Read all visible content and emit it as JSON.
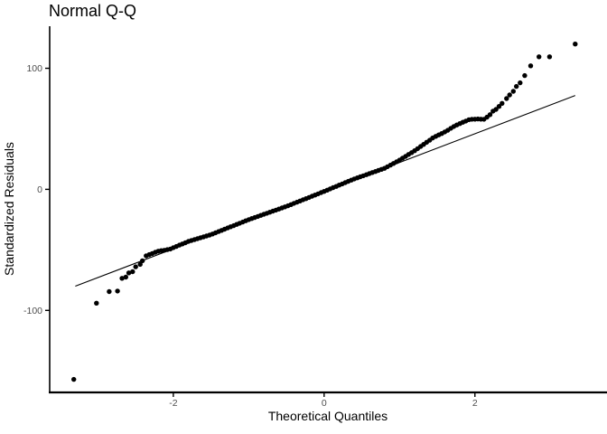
{
  "chart_data": {
    "type": "scatter",
    "title": "Normal Q-Q",
    "xlabel": "Theoretical Quantiles",
    "ylabel": "Standardized Residuals",
    "x_ticks": [
      -2,
      0,
      2
    ],
    "y_ticks": [
      -100,
      0,
      100
    ],
    "xlim": [
      -3.64,
      3.74
    ],
    "ylim": [
      -167,
      134
    ],
    "grid": "off",
    "legend": "none",
    "background_color": "#ffffff",
    "point_color": "#000000",
    "axis_line_color": "#000000",
    "tick_text_color": "#4d4d4d",
    "reference_line": {
      "x1": -3.3,
      "y1": -80,
      "x2": 3.33,
      "y2": 77.5
    },
    "points": [
      [
        -3.32,
        -157
      ],
      [
        -3.02,
        -94
      ],
      [
        -2.85,
        -84.5
      ],
      [
        -2.74,
        -84
      ],
      [
        -2.68,
        -73.5
      ],
      [
        -2.63,
        -72.5
      ],
      [
        -2.59,
        -69
      ],
      [
        -2.54,
        -68
      ],
      [
        -2.5,
        -64
      ],
      [
        -2.44,
        -62
      ],
      [
        -2.41,
        -59
      ],
      [
        -2.36,
        -54.9
      ],
      [
        -2.32,
        -53.9
      ],
      [
        -2.28,
        -53
      ],
      [
        -2.24,
        -52
      ],
      [
        -2.2,
        -51.1
      ],
      [
        -2.16,
        -50.6
      ],
      [
        -2.12,
        -50.3
      ],
      [
        -2.08,
        -49.8
      ],
      [
        -2.04,
        -49.3
      ],
      [
        -2,
        -48.2
      ],
      [
        -1.96,
        -47.2
      ],
      [
        -1.92,
        -46.1
      ],
      [
        -1.88,
        -45.1
      ],
      [
        -1.84,
        -44.1
      ],
      [
        -1.8,
        -43
      ],
      [
        -1.76,
        -42.3
      ],
      [
        -1.72,
        -41.5
      ],
      [
        -1.68,
        -40.8
      ],
      [
        -1.64,
        -40
      ],
      [
        -1.6,
        -39.3
      ],
      [
        -1.56,
        -38.5
      ],
      [
        -1.52,
        -37.8
      ],
      [
        -1.48,
        -36.9
      ],
      [
        -1.44,
        -35.9
      ],
      [
        -1.4,
        -34.9
      ],
      [
        -1.36,
        -33.9
      ],
      [
        -1.32,
        -32.9
      ],
      [
        -1.28,
        -31.9
      ],
      [
        -1.24,
        -30.9
      ],
      [
        -1.2,
        -30
      ],
      [
        -1.16,
        -29
      ],
      [
        -1.12,
        -28
      ],
      [
        -1.08,
        -27
      ],
      [
        -1.04,
        -26
      ],
      [
        -1,
        -25
      ],
      [
        -0.96,
        -24.1
      ],
      [
        -0.92,
        -23.3
      ],
      [
        -0.88,
        -22.4
      ],
      [
        -0.84,
        -21.5
      ],
      [
        -0.8,
        -20.6
      ],
      [
        -0.76,
        -19.8
      ],
      [
        -0.72,
        -18.9
      ],
      [
        -0.68,
        -18
      ],
      [
        -0.64,
        -17.2
      ],
      [
        -0.6,
        -16.3
      ],
      [
        -0.56,
        -15.4
      ],
      [
        -0.52,
        -14.5
      ],
      [
        -0.48,
        -13.6
      ],
      [
        -0.44,
        -12.6
      ],
      [
        -0.4,
        -11.6
      ],
      [
        -0.36,
        -10.6
      ],
      [
        -0.32,
        -9.6
      ],
      [
        -0.28,
        -8.6
      ],
      [
        -0.24,
        -7.7
      ],
      [
        -0.2,
        -6.7
      ],
      [
        -0.16,
        -5.7
      ],
      [
        -0.12,
        -4.7
      ],
      [
        -0.08,
        -3.7
      ],
      [
        -0.04,
        -2.7
      ],
      [
        0,
        -1.7
      ],
      [
        0.04,
        -0.7
      ],
      [
        0.08,
        0.4
      ],
      [
        0.12,
        1.4
      ],
      [
        0.16,
        2.4
      ],
      [
        0.2,
        3.5
      ],
      [
        0.24,
        4.5
      ],
      [
        0.28,
        5.5
      ],
      [
        0.32,
        6.6
      ],
      [
        0.36,
        7.6
      ],
      [
        0.4,
        8.6
      ],
      [
        0.44,
        9.5
      ],
      [
        0.48,
        10.4
      ],
      [
        0.52,
        11.2
      ],
      [
        0.56,
        12.1
      ],
      [
        0.6,
        13
      ],
      [
        0.64,
        13.9
      ],
      [
        0.68,
        14.7
      ],
      [
        0.72,
        15.6
      ],
      [
        0.76,
        16.5
      ],
      [
        0.8,
        17.3
      ],
      [
        0.84,
        18.7
      ],
      [
        0.88,
        20
      ],
      [
        0.92,
        21.4
      ],
      [
        0.96,
        22.8
      ],
      [
        1,
        24.1
      ],
      [
        1.04,
        25.7
      ],
      [
        1.08,
        27.2
      ],
      [
        1.12,
        28.8
      ],
      [
        1.16,
        30.3
      ],
      [
        1.2,
        31.9
      ],
      [
        1.24,
        33.6
      ],
      [
        1.28,
        35.4
      ],
      [
        1.32,
        37.1
      ],
      [
        1.36,
        38.9
      ],
      [
        1.4,
        40.6
      ],
      [
        1.44,
        42.4
      ],
      [
        1.48,
        43.8
      ],
      [
        1.52,
        45
      ],
      [
        1.56,
        46.1
      ],
      [
        1.6,
        47.4
      ],
      [
        1.64,
        48.8
      ],
      [
        1.68,
        50.4
      ],
      [
        1.72,
        51.9
      ],
      [
        1.76,
        53.2
      ],
      [
        1.8,
        54.3
      ],
      [
        1.84,
        55.4
      ],
      [
        1.88,
        56.4
      ],
      [
        1.92,
        57.5
      ],
      [
        1.96,
        57.9
      ],
      [
        2,
        58
      ],
      [
        2.04,
        58.1
      ],
      [
        2.08,
        58
      ],
      [
        2.12,
        57.9
      ],
      [
        2.16,
        59.6
      ],
      [
        2.2,
        61.7
      ],
      [
        2.24,
        64.6
      ],
      [
        2.28,
        66
      ],
      [
        2.32,
        68.5
      ],
      [
        2.36,
        71
      ],
      [
        2.42,
        75
      ],
      [
        2.46,
        78
      ],
      [
        2.51,
        81
      ],
      [
        2.55,
        85
      ],
      [
        2.6,
        88
      ],
      [
        2.66,
        94
      ],
      [
        2.74,
        102
      ],
      [
        2.85,
        109.5
      ],
      [
        2.99,
        109.5
      ],
      [
        3.33,
        120
      ]
    ]
  }
}
